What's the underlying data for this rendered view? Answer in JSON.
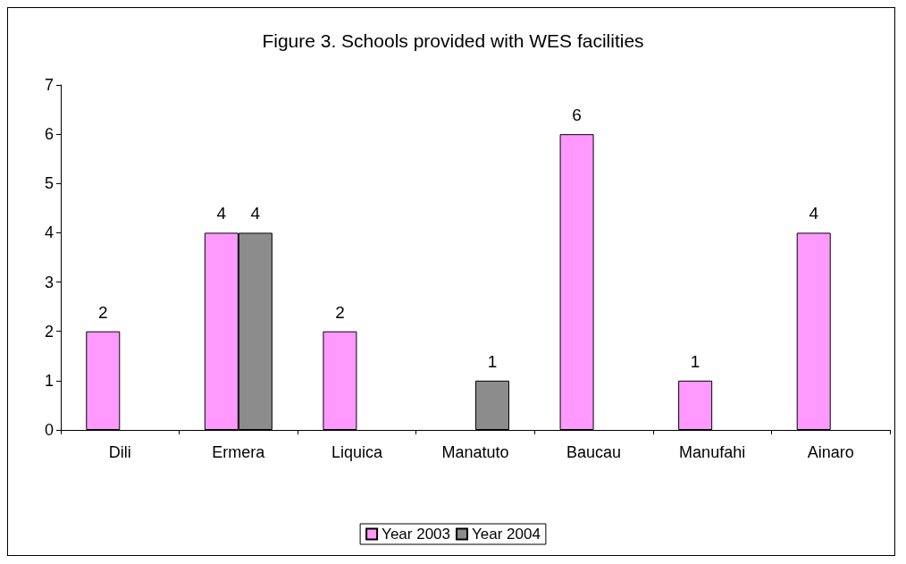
{
  "chart_data": {
    "type": "bar",
    "title": "Figure 3. Schools provided with WES facilities",
    "categories": [
      "Dili",
      "Ermera",
      "Liquica",
      "Manatuto",
      "Baucau",
      "Manufahi",
      "Ainaro"
    ],
    "series": [
      {
        "name": "Year 2003",
        "color": "#ff99ff",
        "values": [
          2,
          4,
          2,
          null,
          6,
          1,
          4
        ]
      },
      {
        "name": "Year 2004",
        "color": "#8c8c8c",
        "values": [
          null,
          4,
          null,
          1,
          null,
          null,
          null
        ]
      }
    ],
    "ylim": [
      0,
      7
    ],
    "yticks": [
      0,
      1,
      2,
      3,
      4,
      5,
      6,
      7
    ],
    "grid": false,
    "legend": "bottom",
    "data_labels": true
  }
}
